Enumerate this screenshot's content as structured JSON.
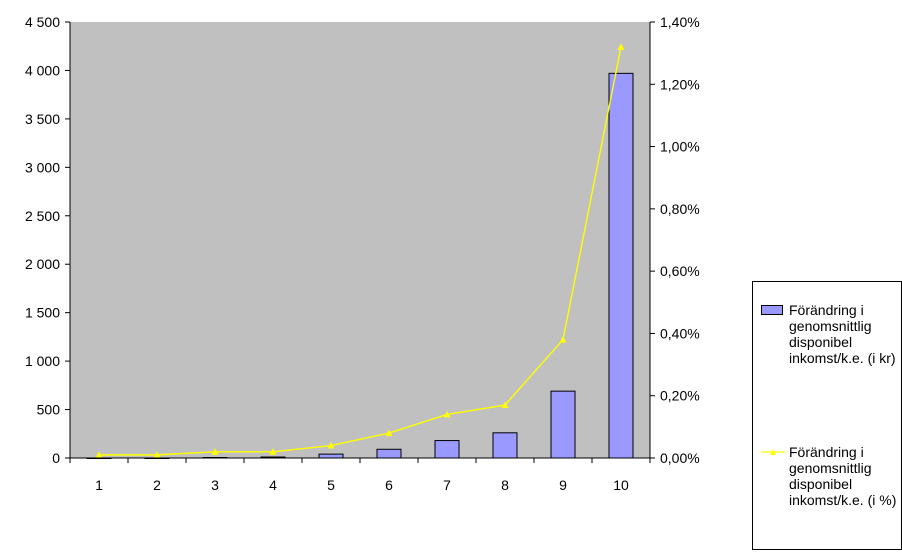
{
  "chart_data": {
    "type": "bar+line",
    "categories": [
      "1",
      "2",
      "3",
      "4",
      "5",
      "6",
      "7",
      "8",
      "9",
      "10"
    ],
    "series": [
      {
        "name": "Förändring i genomsnittlig disponibel inkomst/k.e. (i kr)",
        "type": "bar",
        "axis": "left",
        "color": "#9999ff",
        "values": [
          0,
          0,
          5,
          10,
          40,
          90,
          180,
          260,
          690,
          3970
        ]
      },
      {
        "name": "Förändring i genomsnittlig disponibel inkomst/k.e. (i %)",
        "type": "line",
        "axis": "right",
        "color": "#ffff00",
        "marker": "triangle",
        "values": [
          0.01,
          0.01,
          0.02,
          0.02,
          0.04,
          0.08,
          0.14,
          0.17,
          0.38,
          1.32
        ]
      }
    ],
    "y_left": {
      "ylim": [
        0,
        4500
      ],
      "ticks": [
        0,
        500,
        1000,
        1500,
        2000,
        2500,
        3000,
        3500,
        4000,
        4500
      ],
      "tick_labels": [
        "0",
        "500",
        "1 000",
        "1 500",
        "2 000",
        "2 500",
        "3 000",
        "3 500",
        "4 000",
        "4 500"
      ]
    },
    "y_right": {
      "ylim": [
        0,
        1.4
      ],
      "ticks": [
        0,
        0.2,
        0.4,
        0.6,
        0.8,
        1.0,
        1.2,
        1.4
      ],
      "tick_labels": [
        "0,00%",
        "0,20%",
        "0,40%",
        "0,60%",
        "0,80%",
        "1,00%",
        "1,20%",
        "1,40%"
      ]
    },
    "plot_background": "#c0c0c0",
    "grid": false,
    "legend_position": "right"
  }
}
